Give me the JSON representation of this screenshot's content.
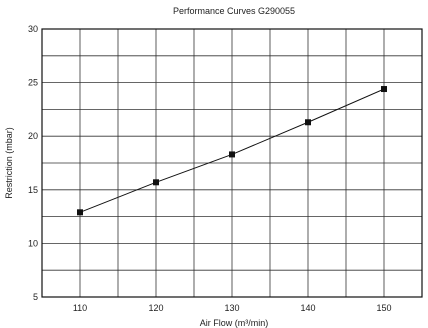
{
  "chart_data": {
    "type": "line",
    "title": "Performance Curves G290055",
    "xlabel": "Air Flow (m³/min)",
    "ylabel": "Restriction (mbar)",
    "x": [
      110,
      120,
      130,
      140,
      150
    ],
    "series": [
      {
        "values": [
          12.9,
          15.7,
          18.3,
          21.3,
          24.4
        ]
      }
    ],
    "xlim": [
      105,
      155
    ],
    "ylim": [
      5,
      30
    ],
    "xticks": [
      "110",
      "120",
      "130",
      "140",
      "150"
    ],
    "yticks": [
      "5",
      "10",
      "15",
      "20",
      "25",
      "30"
    ],
    "grid": true,
    "marker": "square",
    "colors": {
      "line": "#111111",
      "grid": "#333333",
      "frame": "#111111"
    }
  }
}
